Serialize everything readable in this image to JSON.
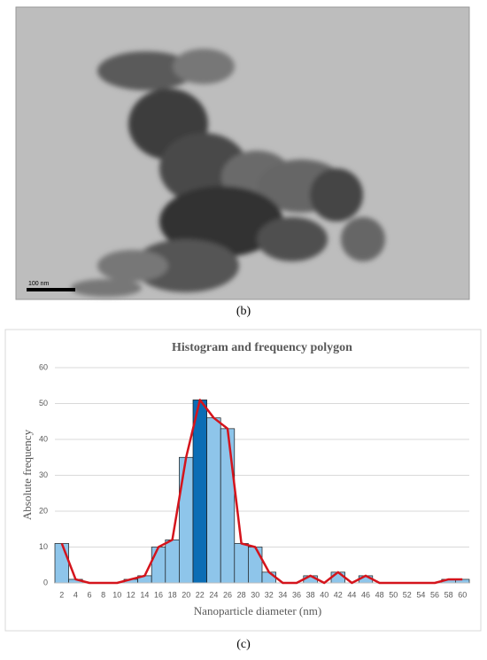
{
  "figure_b": {
    "scale_bar": "100 nm",
    "caption": "(b)"
  },
  "chart_data": {
    "type": "bar",
    "title": "Histogram and frequency polygon",
    "x_label": "Nanoparticle diameter (nm)",
    "y_label": "Absolute frequency",
    "categories": [
      "2",
      "4",
      "6",
      "8",
      "10",
      "12",
      "14",
      "16",
      "18",
      "20",
      "22",
      "24",
      "26",
      "28",
      "30",
      "32",
      "34",
      "36",
      "38",
      "40",
      "42",
      "44",
      "46",
      "48",
      "50",
      "52",
      "54",
      "56",
      "58",
      "60"
    ],
    "values": [
      11,
      1,
      0,
      0,
      0,
      1,
      2,
      10,
      12,
      35,
      51,
      46,
      43,
      11,
      10,
      3,
      0,
      0,
      2,
      0,
      3,
      0,
      2,
      0,
      0,
      0,
      0,
      0,
      1,
      1
    ],
    "color": "#8ec5ea",
    "highlight_index": 10,
    "highlight_color": "#0b6db5",
    "polygon_color": "#d4141c",
    "ylim": [
      0,
      60
    ],
    "yticks": [
      0,
      10,
      20,
      30,
      40,
      50,
      60
    ],
    "grid": true
  },
  "chart_caption": "(c)"
}
